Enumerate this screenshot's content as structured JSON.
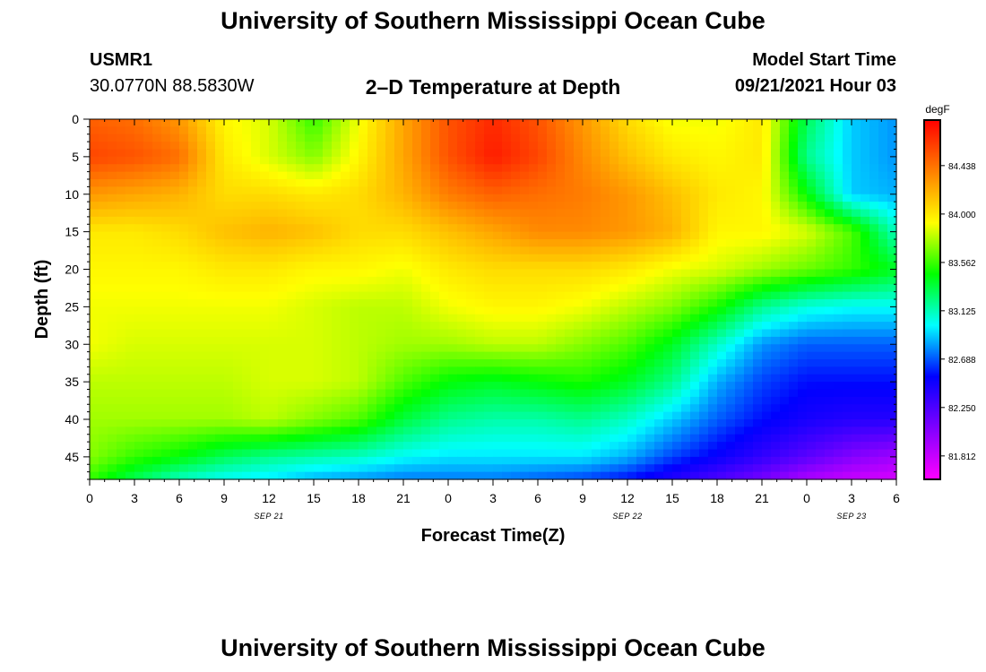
{
  "header": {
    "title": "University of Southern Mississippi Ocean Cube",
    "station": "USMR1",
    "coords": "30.0770N  88.5830W",
    "plot_title": "2–D Temperature at Depth",
    "model_start_label": "Model Start Time",
    "model_start_value": "09/21/2021 Hour 03"
  },
  "footer": {
    "title": "University of Southern Mississippi Ocean Cube"
  },
  "chart_data": {
    "type": "heatmap",
    "title": "2–D Temperature at Depth",
    "xlabel": "Forecast Time(Z)",
    "ylabel": "Depth (ft)",
    "x_tick_labels": [
      "0",
      "3",
      "6",
      "9",
      "12",
      "15",
      "18",
      "21",
      "0",
      "3",
      "6",
      "9",
      "12",
      "15",
      "18",
      "21",
      "0",
      "3",
      "6"
    ],
    "x_hours": [
      0,
      3,
      6,
      9,
      12,
      15,
      18,
      21,
      24,
      27,
      30,
      33,
      36,
      39,
      42,
      45,
      48,
      51,
      54
    ],
    "date_labels": [
      {
        "text": "SEP 21",
        "hour": 12
      },
      {
        "text": "SEP 22",
        "hour": 36
      },
      {
        "text": "SEP 23",
        "hour": 51
      }
    ],
    "y_ticks": [
      0,
      5,
      10,
      15,
      20,
      25,
      30,
      35,
      40,
      45
    ],
    "ylim": [
      0,
      48
    ],
    "xlim": [
      0,
      54
    ],
    "colorbar": {
      "unit": "degF",
      "tick_labels": [
        "84.438",
        "84.000",
        "83.562",
        "83.125",
        "82.688",
        "82.250",
        "81.812"
      ],
      "tick_values": [
        84.438,
        84.0,
        83.562,
        83.125,
        82.688,
        82.25,
        81.812
      ],
      "range": [
        81.6,
        84.85
      ],
      "colors": [
        "#ff00ff",
        "#8000ff",
        "#0000ff",
        "#00ffff",
        "#00ff00",
        "#ffff00",
        "#ff8000",
        "#ff0000"
      ]
    },
    "depths_ft": [
      0,
      5,
      10,
      15,
      20,
      25,
      30,
      35,
      40,
      45,
      48
    ],
    "times_h": [
      0,
      3,
      6,
      9,
      12,
      15,
      18,
      21,
      24,
      27,
      30,
      33,
      36,
      39,
      42,
      45,
      48,
      51,
      54
    ],
    "temperature_degF": [
      [
        84.5,
        84.45,
        84.3,
        83.95,
        83.85,
        83.55,
        83.9,
        84.25,
        84.55,
        84.7,
        84.55,
        84.3,
        84.05,
        83.9,
        83.9,
        84.0,
        83.3,
        82.9,
        82.8
      ],
      [
        84.6,
        84.55,
        84.45,
        84.0,
        83.85,
        83.7,
        83.95,
        84.25,
        84.55,
        84.75,
        84.6,
        84.35,
        84.15,
        84.0,
        83.95,
        84.0,
        83.2,
        82.9,
        82.8
      ],
      [
        84.3,
        84.25,
        84.2,
        84.05,
        84.05,
        84.0,
        84.05,
        84.2,
        84.4,
        84.5,
        84.45,
        84.4,
        84.3,
        84.15,
        84.0,
        83.95,
        83.45,
        82.9,
        82.85
      ],
      [
        84.0,
        84.0,
        84.05,
        84.15,
        84.2,
        84.15,
        84.05,
        84.05,
        84.15,
        84.25,
        84.35,
        84.35,
        84.3,
        84.2,
        83.95,
        83.95,
        83.85,
        83.6,
        83.1
      ],
      [
        83.95,
        83.95,
        83.95,
        84.0,
        84.0,
        83.95,
        83.95,
        83.9,
        84.0,
        84.05,
        84.05,
        84.05,
        84.0,
        83.9,
        83.85,
        83.75,
        83.65,
        83.55,
        83.4
      ],
      [
        83.9,
        83.9,
        83.9,
        83.9,
        83.9,
        83.85,
        83.8,
        83.8,
        83.9,
        83.95,
        83.95,
        83.9,
        83.8,
        83.7,
        83.5,
        83.2,
        83.05,
        83.0,
        83.0
      ],
      [
        83.9,
        83.85,
        83.85,
        83.85,
        83.85,
        83.85,
        83.8,
        83.75,
        83.75,
        83.8,
        83.8,
        83.7,
        83.6,
        83.4,
        83.1,
        82.8,
        82.7,
        82.7,
        82.7
      ],
      [
        83.8,
        83.8,
        83.8,
        83.8,
        83.85,
        83.85,
        83.8,
        83.6,
        83.45,
        83.4,
        83.45,
        83.5,
        83.4,
        83.2,
        82.85,
        82.65,
        82.55,
        82.55,
        82.55
      ],
      [
        83.75,
        83.75,
        83.75,
        83.75,
        83.8,
        83.7,
        83.6,
        83.35,
        83.2,
        83.15,
        83.15,
        83.2,
        83.1,
        82.9,
        82.7,
        82.55,
        82.45,
        82.4,
        82.4
      ],
      [
        83.7,
        83.55,
        83.45,
        83.3,
        83.2,
        83.15,
        83.1,
        83.0,
        82.95,
        82.95,
        82.95,
        82.95,
        82.85,
        82.65,
        82.5,
        82.35,
        82.2,
        82.05,
        81.95
      ],
      [
        83.55,
        83.3,
        83.1,
        83.0,
        82.95,
        82.85,
        82.8,
        82.75,
        82.75,
        82.75,
        82.7,
        82.65,
        82.55,
        82.4,
        82.25,
        82.1,
        81.9,
        81.8,
        81.75
      ]
    ]
  }
}
